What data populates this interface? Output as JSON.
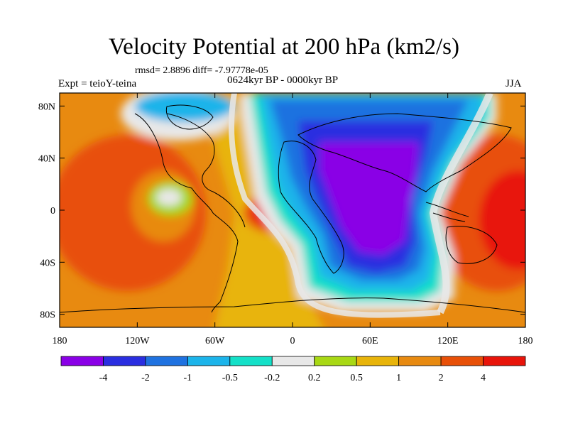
{
  "title": "Velocity Potential at 200 hPa (km2/s)",
  "stats": "rmsd= 2.8896 diff= -7.97778e-05",
  "experiment": "Expt = teioY-teina",
  "period": "0624kyr BP - 0000kyr BP",
  "season": "JJA",
  "map": {
    "lat_labels": [
      "80N",
      "40N",
      "0",
      "40S",
      "80S"
    ],
    "lat_values": [
      80,
      40,
      0,
      -40,
      -80
    ],
    "lon_labels": [
      "180",
      "120W",
      "60W",
      "0",
      "60E",
      "120E",
      "180"
    ],
    "lon_values": [
      -180,
      -120,
      -60,
      0,
      60,
      120,
      180
    ],
    "lon_range": [
      -180,
      180
    ],
    "lat_range": [
      -90,
      90
    ]
  },
  "colorbar": {
    "labels": [
      "-4",
      "-2",
      "-1",
      "-0.5",
      "-0.2",
      "0.2",
      "0.5",
      "1",
      "2",
      "4"
    ],
    "colors": [
      "#8a00e6",
      "#2a2ee0",
      "#1f72e0",
      "#1cb4ea",
      "#14e0c8",
      "#e8e8e8",
      "#a8d814",
      "#e8b40a",
      "#e88a10",
      "#e85008",
      "#e8140a"
    ]
  }
}
